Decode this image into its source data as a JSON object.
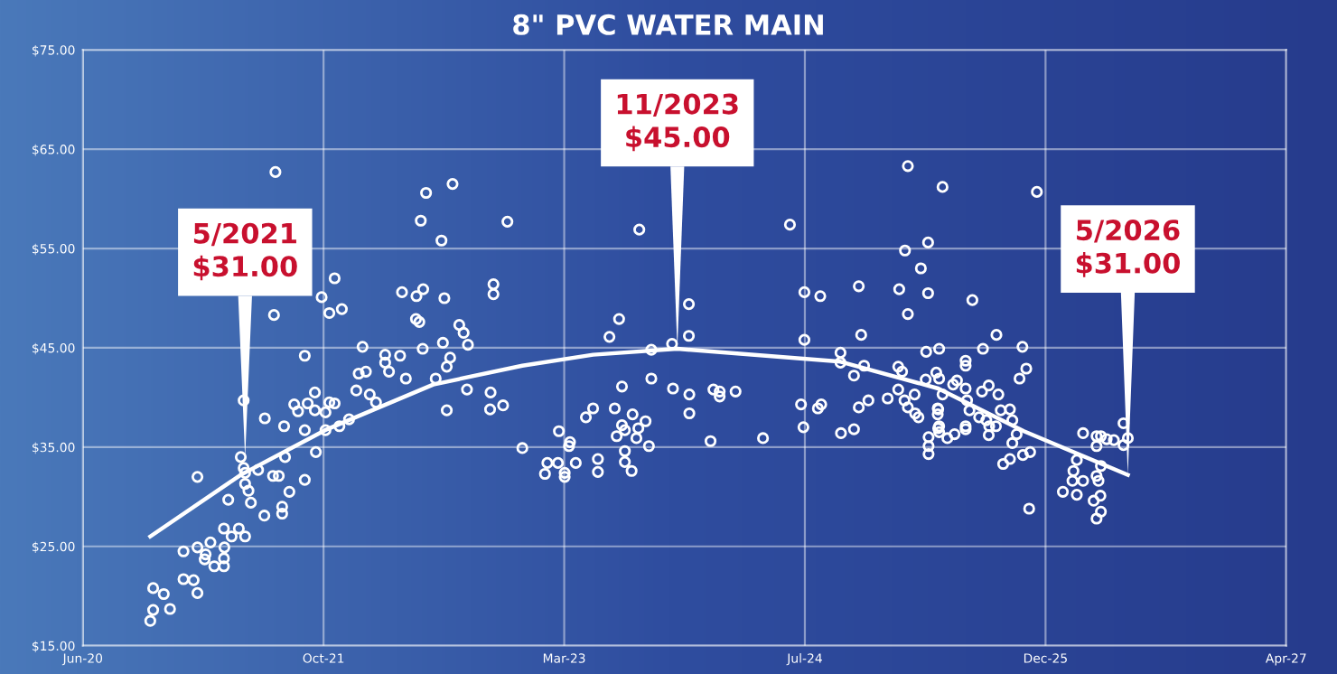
{
  "chart_data": {
    "type": "scatter",
    "title": "8\" PVC WATER MAIN",
    "xlim": [
      "2020-06-15",
      "2027-04-20"
    ],
    "xticks": [
      {
        "value": "2020-06-15",
        "label": "Jun-20"
      },
      {
        "value": "2021-10-28",
        "label": "Oct-21"
      },
      {
        "value": "2023-03-12",
        "label": "Mar-23"
      },
      {
        "value": "2024-07-24",
        "label": "Jul-24"
      },
      {
        "value": "2025-12-06",
        "label": "Dec-25"
      },
      {
        "value": "2027-04-20",
        "label": "Apr-27"
      }
    ],
    "ylim": [
      15,
      75
    ],
    "yticks": [
      {
        "value": 15,
        "label": "$15.00"
      },
      {
        "value": 25,
        "label": "$25.00"
      },
      {
        "value": 35,
        "label": "$35.00"
      },
      {
        "value": 45,
        "label": "$45.00"
      },
      {
        "value": 55,
        "label": "$55.00"
      },
      {
        "value": 65,
        "label": "$65.00"
      },
      {
        "value": 75,
        "label": "$75.00"
      }
    ],
    "grid": true,
    "legend": false,
    "series": [
      {
        "color": "#ffffff",
        "marker": "circle",
        "x": [
          "2021-07-20",
          "2020-11-02",
          "2020-11-08",
          "2020-12-13",
          "2020-11-30",
          "2020-11-08",
          "2021-01-10",
          "2021-01-31",
          "2021-02-08",
          "2021-01-10",
          "2021-02-08",
          "2021-02-25",
          "2021-02-23",
          "2021-03-07",
          "2021-03-15",
          "2021-04-04",
          "2021-04-04",
          "2021-04-05",
          "2021-04-04",
          "2021-04-20",
          "2021-05-05",
          "2021-05-18",
          "2021-04-13",
          "2021-05-30",
          "2021-02-08",
          "2021-05-09",
          "2021-05-15",
          "2021-05-18",
          "2021-05-18",
          "2021-05-25",
          "2021-05-15",
          "2021-06-14",
          "2021-06-28",
          "2021-06-27",
          "2021-07-15",
          "2021-07-27",
          "2021-08-03",
          "2021-08-03",
          "2021-08-07",
          "2021-08-09",
          "2021-08-18",
          "2021-07-17",
          "2021-08-28",
          "2021-09-05",
          "2021-09-19",
          "2021-09-19",
          "2021-09-19",
          "2021-09-25",
          "2021-10-10",
          "2021-10-10",
          "2021-10-12",
          "2021-10-24",
          "2021-11-09",
          "2021-11-20",
          "2021-11-01",
          "2021-11-09",
          "2021-11-20",
          "2021-11-01",
          "2021-11-30",
          "2021-12-05",
          "2021-12-20",
          "2022-01-04",
          "2022-01-09",
          "2022-01-24",
          "2022-01-17",
          "2022-02-01",
          "2022-02-14",
          "2022-03-05",
          "2022-03-05",
          "2022-03-13",
          "2022-04-05",
          "2022-04-09",
          "2022-04-17",
          "2022-05-09",
          "2022-05-23",
          "2022-05-08",
          "2022-05-15",
          "2022-05-18",
          "2022-05-29",
          "2022-07-23",
          "2022-06-30",
          "2022-07-06",
          "2022-05-22",
          "2022-06-18",
          "2022-07-03",
          "2022-07-11",
          "2022-07-18",
          "2022-07-11",
          "2022-08-06",
          "2022-08-15",
          "2022-08-24",
          "2022-08-22",
          "2022-10-10",
          "2022-10-09",
          "2022-11-05",
          "2022-10-16",
          "2022-10-16",
          "2022-11-14",
          "2022-12-15",
          "2023-08-15",
          "2024-06-23",
          "2025-02-23",
          "2023-01-31",
          "2023-02-05",
          "2023-02-27",
          "2023-03-13",
          "2023-03-13",
          "2023-03-24",
          "2023-03-22",
          "2023-03-01",
          "2023-04-05",
          "2023-04-26",
          "2023-05-11",
          "2023-05-21",
          "2023-05-21",
          "2023-06-14",
          "2023-07-04",
          "2023-06-25",
          "2023-07-10",
          "2023-07-10",
          "2023-07-16",
          "2023-06-29",
          "2023-07-16",
          "2023-07-16",
          "2023-07-30",
          "2023-08-01",
          "2023-08-13",
          "2023-08-09",
          "2023-08-28",
          "2023-09-04",
          "2023-09-09",
          "2023-09-09",
          "2023-10-22",
          "2023-10-24",
          "2023-11-26",
          "2023-11-26",
          "2023-11-27",
          "2023-11-27",
          "2024-01-10",
          "2024-01-16",
          "2024-01-29",
          "2024-01-29",
          "2024-03-02",
          "2024-04-28",
          "2024-07-23",
          "2024-08-25",
          "2024-07-23",
          "2024-07-16",
          "2024-07-21",
          "2024-08-20",
          "2024-08-27",
          "2024-10-06",
          "2024-10-06",
          "2024-11-03",
          "2024-11-18",
          "2024-11-13",
          "2024-11-24",
          "2024-10-07",
          "2024-11-03",
          "2024-11-13",
          "2024-12-03",
          "2025-01-12",
          "2025-02-03",
          "2025-02-03",
          "2025-02-11",
          "2025-02-16",
          "2025-02-23",
          "2025-03-09",
          "2025-03-10",
          "2025-03-17",
          "2025-02-05",
          "2025-02-23",
          "2025-02-17",
          "2025-03-22",
          "2025-04-06",
          "2025-04-06",
          "2025-04-02",
          "2025-04-01",
          "2025-04-07",
          "2025-04-07",
          "2025-04-07",
          "2025-04-27",
          "2025-04-27",
          "2025-05-06",
          "2025-11-18",
          "2025-07-07",
          "2025-08-26",
          "2025-04-29",
          "2025-07-29",
          "2025-10-19",
          "2025-06-23",
          "2025-06-23",
          "2025-10-27",
          "2025-10-13",
          "2025-04-23",
          "2025-04-29",
          "2025-05-06",
          "2025-05-28",
          "2025-06-05",
          "2025-06-23",
          "2025-07-27",
          "2025-08-10",
          "2025-08-30",
          "2025-06-26",
          "2025-07-01",
          "2025-04-26",
          "2025-04-26",
          "2025-07-21",
          "2025-08-05",
          "2025-08-11",
          "2025-08-25",
          "2025-09-04",
          "2025-09-23",
          "2025-09-28",
          "2025-04-29",
          "2025-04-29",
          "2025-05-16",
          "2025-05-31",
          "2025-06-23",
          "2025-06-23",
          "2025-08-10",
          "2025-10-07",
          "2025-09-28",
          "2025-09-09",
          "2025-09-23",
          "2025-10-20",
          "2025-11-04",
          "2025-11-02",
          "2026-01-11",
          "2026-02-02",
          "2026-02-09",
          "2026-01-31",
          "2026-02-09",
          "2026-02-22",
          "2026-02-22",
          "2026-03-16",
          "2026-03-22",
          "2026-03-31",
          "2026-03-30",
          "2026-03-22",
          "2026-03-26",
          "2026-03-22",
          "2026-03-22",
          "2026-03-31",
          "2026-03-31",
          "2026-04-12",
          "2026-04-27",
          "2026-05-17",
          "2026-05-26",
          "2026-05-17"
        ],
        "values": [
          62.7,
          17.5,
          18.6,
          18.7,
          20.2,
          20.8,
          21.7,
          21.6,
          20.3,
          24.5,
          24.9,
          24.2,
          23.7,
          25.4,
          23.0,
          23.0,
          23.8,
          24.9,
          26.8,
          26.0,
          26.8,
          26.0,
          29.7,
          29.4,
          32.0,
          34.0,
          32.9,
          32.4,
          31.3,
          30.6,
          39.7,
          32.7,
          37.9,
          28.1,
          32.1,
          32.1,
          29.0,
          28.3,
          37.1,
          34.0,
          30.5,
          48.3,
          39.3,
          38.6,
          44.2,
          36.7,
          31.7,
          39.4,
          40.5,
          38.7,
          34.5,
          50.1,
          48.5,
          52.0,
          38.5,
          39.5,
          39.4,
          36.7,
          37.1,
          48.9,
          37.8,
          40.7,
          42.4,
          42.6,
          45.1,
          40.3,
          39.5,
          44.3,
          43.5,
          42.6,
          44.2,
          50.6,
          41.9,
          50.2,
          50.9,
          47.9,
          47.6,
          57.8,
          60.6,
          61.5,
          55.8,
          50.0,
          44.9,
          41.9,
          45.5,
          43.1,
          44.0,
          38.7,
          47.3,
          46.5,
          45.3,
          40.8,
          40.5,
          38.8,
          39.2,
          51.4,
          50.4,
          57.7,
          34.9,
          56.9,
          57.4,
          63.3,
          32.3,
          33.4,
          33.4,
          32.4,
          32.0,
          35.5,
          35.1,
          36.6,
          33.4,
          38.0,
          38.9,
          33.8,
          32.5,
          46.1,
          47.9,
          38.9,
          41.1,
          37.2,
          36.7,
          36.1,
          34.6,
          33.5,
          32.6,
          38.3,
          36.9,
          35.9,
          37.6,
          35.1,
          44.8,
          41.9,
          45.4,
          40.9,
          49.4,
          46.2,
          40.3,
          38.4,
          35.6,
          40.8,
          40.6,
          40.1,
          40.6,
          35.9,
          50.6,
          50.2,
          45.8,
          39.3,
          37.0,
          38.9,
          39.3,
          44.5,
          43.5,
          42.2,
          46.3,
          51.2,
          43.2,
          36.4,
          36.8,
          39.0,
          39.7,
          39.9,
          40.8,
          43.1,
          42.6,
          39.7,
          39.0,
          40.3,
          38.4,
          38.0,
          50.9,
          48.4,
          54.8,
          53.0,
          55.6,
          50.5,
          44.6,
          41.8,
          36.0,
          35.1,
          34.3,
          38.8,
          36.9,
          61.2,
          60.7,
          49.8,
          46.3,
          44.9,
          44.9,
          45.1,
          43.7,
          43.2,
          42.9,
          41.9,
          42.5,
          41.9,
          40.3,
          41.3,
          41.7,
          40.9,
          40.6,
          41.2,
          40.3,
          39.7,
          38.7,
          38.9,
          38.3,
          38.0,
          37.7,
          37.1,
          37.1,
          38.7,
          38.8,
          37.7,
          37.1,
          36.5,
          35.9,
          36.3,
          37.1,
          36.8,
          36.2,
          36.3,
          35.4,
          33.3,
          33.8,
          34.2,
          34.5,
          28.8,
          30.5,
          32.6,
          33.7,
          31.6,
          30.2,
          31.6,
          36.4,
          29.6,
          27.8,
          28.5,
          30.1,
          32.1,
          31.6,
          35.1,
          36.1,
          36.1,
          33.1,
          35.8,
          35.7,
          37.4,
          35.9,
          35.2
        ]
      },
      {
        "type": "line",
        "color": "#ffffff",
        "marker": "none",
        "line_style": "solid",
        "x": [
          "2020-11-02",
          "2021-05-09",
          "2021-10-31",
          "2022-06-13",
          "2022-12-15",
          "2023-05-11",
          "2023-11-02",
          "2024-10-06",
          "2025-04-27",
          "2025-10-22",
          "2026-05-26"
        ],
        "values": [
          26.0,
          32.2,
          36.7,
          41.3,
          43.2,
          44.3,
          44.9,
          43.6,
          40.9,
          36.6,
          32.2
        ]
      }
    ],
    "annotations": [
      {
        "text": "5/2021\n$31.00",
        "x": "2021-05-18",
        "y": 33.9
      },
      {
        "text": "11/2023\n$45.00",
        "x": "2023-11-02",
        "y": 44.9
      },
      {
        "text": "5/2026\n$31.00",
        "x": "2026-05-26",
        "y": 32.2
      }
    ]
  }
}
